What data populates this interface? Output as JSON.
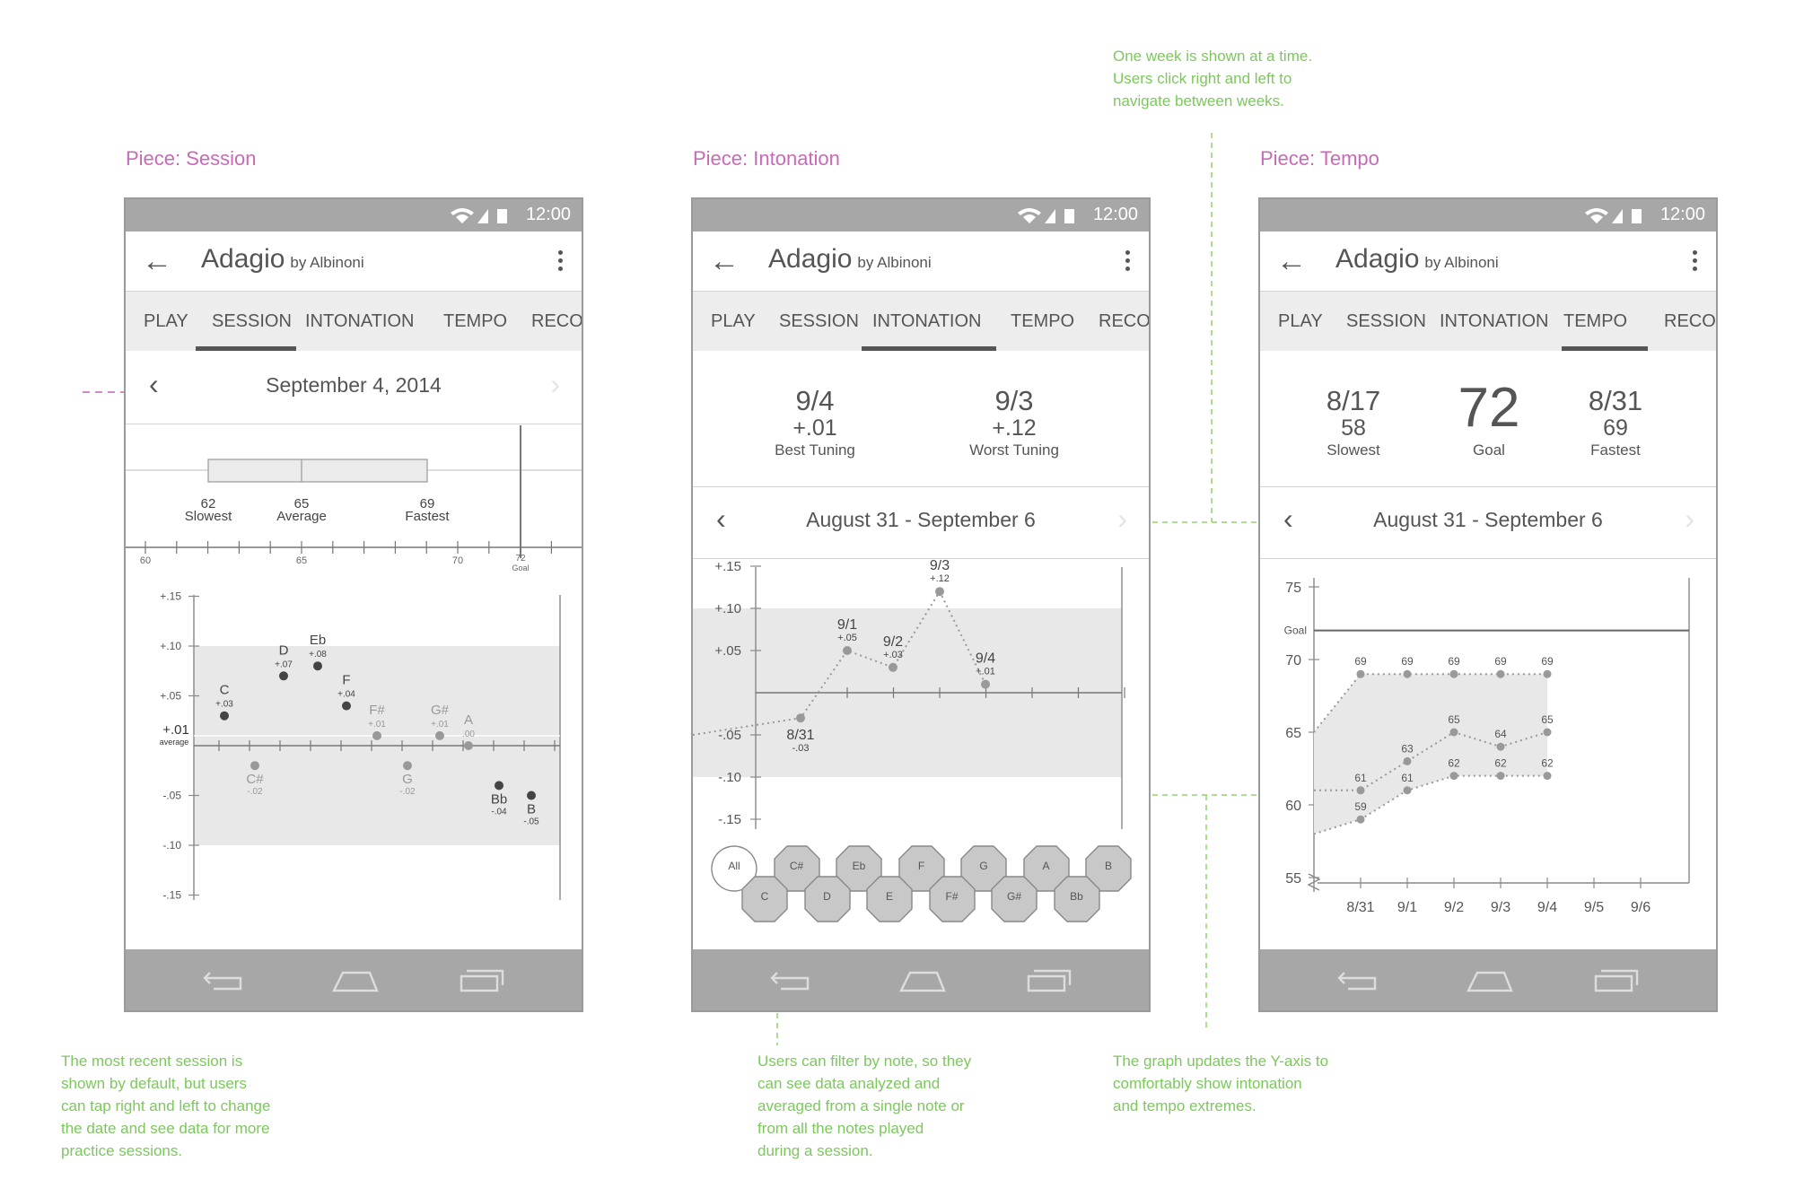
{
  "pieces": [
    {
      "label": "Piece: Session"
    },
    {
      "label": "Piece: Intonation"
    },
    {
      "label": "Piece: Tempo"
    }
  ],
  "annotations": {
    "week": "One week is shown at a time.\nUsers click right and left to\nnavigate between weeks.",
    "session": "The most recent session is\nshown by default, but users\ncan tap right and left to change\nthe date and see data for more\npractice sessions.",
    "filter": "Users can filter by note, so they\ncan see data analyzed and\naveraged from a single note or\nfrom all the notes played\nduring a session.",
    "yaxis": "The graph updates the Y-axis to\ncomfortably show intonation\nand tempo extremes."
  },
  "status": {
    "time": "12:00"
  },
  "appbar": {
    "back": "←",
    "title": "Adagio",
    "by": "by Albinoni"
  },
  "tabs": [
    "PLAY",
    "SESSION",
    "INTONATION",
    "TEMPO",
    "RECOR"
  ],
  "session": {
    "date": "September 4, 2014",
    "box": {
      "slowest": {
        "value": "62",
        "label": "Slowest"
      },
      "average": {
        "value": "65",
        "label": "Average"
      },
      "fastest": {
        "value": "69",
        "label": "Fastest"
      },
      "axis_ticks": [
        "60",
        "65",
        "70"
      ],
      "goal_value": "72",
      "goal_label": "Goal"
    },
    "notes_chart": {
      "y_ticks": [
        "+.15",
        "+.10",
        "+.05",
        "-.05",
        "-.10",
        "-.15"
      ],
      "average_value": "+.01",
      "average_label": "average",
      "notes": [
        {
          "name": "C",
          "value": "+.03",
          "v": 0.03,
          "active": true
        },
        {
          "name": "C#",
          "value": "-.02",
          "v": -0.02,
          "active": false
        },
        {
          "name": "D",
          "value": "+.07",
          "v": 0.07,
          "active": true
        },
        {
          "name": "Eb",
          "value": "+.08",
          "v": 0.08,
          "active": true
        },
        {
          "name": "F",
          "value": "+.04",
          "v": 0.04,
          "active": true
        },
        {
          "name": "F#",
          "value": "+.01",
          "v": 0.01,
          "active": false
        },
        {
          "name": "G",
          "value": "-.02",
          "v": -0.02,
          "active": false
        },
        {
          "name": "G#",
          "value": "+.01",
          "v": 0.01,
          "active": false
        },
        {
          "name": "A",
          "value": ".00",
          "v": 0.0,
          "active": false
        },
        {
          "name": "Bb",
          "value": "-.04",
          "v": -0.04,
          "active": true
        },
        {
          "name": "B",
          "value": "-.05",
          "v": -0.05,
          "active": true
        }
      ]
    }
  },
  "intonation": {
    "best": {
      "date": "9/4",
      "value": "+.01",
      "label": "Best Tuning"
    },
    "worst": {
      "date": "9/3",
      "value": "+.12",
      "label": "Worst Tuning"
    },
    "week": "August 31 - September 6",
    "y_ticks": [
      "+.15",
      "+.10",
      "+.05",
      "-.05",
      "-.10",
      "-.15"
    ],
    "points": [
      {
        "date": "8/31",
        "value": "-.03",
        "v": -0.03
      },
      {
        "date": "9/1",
        "value": "+.05",
        "v": 0.05
      },
      {
        "date": "9/2",
        "value": "+.03",
        "v": 0.03
      },
      {
        "date": "9/3",
        "value": "+.12",
        "v": 0.12
      },
      {
        "date": "9/4",
        "value": "+.01",
        "v": 0.01
      }
    ],
    "filters_top": [
      "All",
      "C#",
      "Eb",
      "F",
      "G",
      "A",
      "B"
    ],
    "filters_bottom": [
      "C",
      "D",
      "E",
      "F#",
      "G#",
      "Bb"
    ]
  },
  "tempo": {
    "slowest": {
      "date": "8/17",
      "value": "58",
      "label": "Slowest"
    },
    "goal": {
      "value": "72",
      "label": "Goal"
    },
    "fastest": {
      "date": "8/31",
      "value": "69",
      "label": "Fastest"
    },
    "week": "August 31 - September 6",
    "y_ticks": [
      "75",
      "70",
      "65",
      "60",
      "55"
    ],
    "goal_axis_label": "Goal",
    "x_labels": [
      "8/31",
      "9/1",
      "9/2",
      "9/3",
      "9/4",
      "9/5",
      "9/6"
    ],
    "fastest_series": [
      69,
      69,
      69,
      69,
      69
    ],
    "average_series": [
      61,
      63,
      65,
      64,
      65
    ],
    "slowest_series": [
      59,
      61,
      62,
      62,
      62
    ]
  }
}
